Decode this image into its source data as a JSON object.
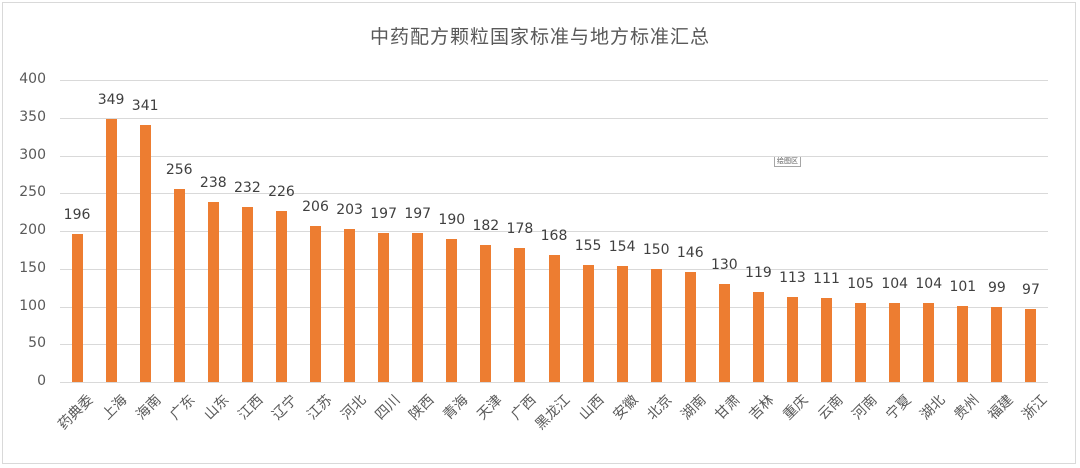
{
  "chart_data": {
    "type": "bar",
    "title": "中药配方颗粒国家标准与地方标准汇总",
    "xlabel": "",
    "ylabel": "",
    "ylim": [
      0,
      400
    ],
    "yticks": [
      0,
      50,
      100,
      150,
      200,
      250,
      300,
      350,
      400
    ],
    "grid": true,
    "legend": null,
    "bar_color": "#ed7d31",
    "categories": [
      "药典委",
      "上海",
      "海南",
      "广东",
      "山东",
      "江西",
      "辽宁",
      "江苏",
      "河北",
      "四川",
      "陕西",
      "青海",
      "天津",
      "广西",
      "黑龙江",
      "山西",
      "安徽",
      "北京",
      "湖南",
      "甘肃",
      "吉林",
      "重庆",
      "云南",
      "河南",
      "宁夏",
      "湖北",
      "贵州",
      "福建",
      "浙江"
    ],
    "values": [
      196,
      349,
      341,
      256,
      238,
      232,
      226,
      206,
      203,
      197,
      197,
      190,
      182,
      178,
      168,
      155,
      154,
      150,
      146,
      130,
      119,
      113,
      111,
      105,
      104,
      104,
      101,
      99,
      97
    ]
  },
  "plot_area_tag": "绘图区"
}
